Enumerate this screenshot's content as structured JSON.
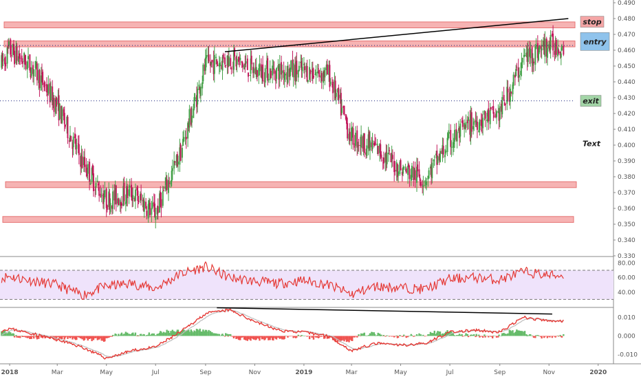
{
  "chart_data": [
    {
      "type": "candlestick",
      "panel": "price",
      "ylim": [
        0.33,
        0.49
      ],
      "ticks": [
        "0.490",
        "0.480",
        "0.470",
        "0.460",
        "0.450",
        "0.440",
        "0.430",
        "0.420",
        "0.410",
        "0.400",
        "0.390",
        "0.380",
        "0.370",
        "0.360",
        "0.350",
        "0.340",
        "0.330"
      ],
      "tick_values": [
        0.49,
        0.48,
        0.47,
        0.46,
        0.45,
        0.44,
        0.43,
        0.42,
        0.41,
        0.4,
        0.39,
        0.38,
        0.37,
        0.36,
        0.35,
        0.34,
        0.33
      ],
      "x_labels": [
        "2018",
        "Mar",
        "May",
        "Jul",
        "Sep",
        "Nov",
        "2019",
        "Mar",
        "May",
        "Jul",
        "Sep",
        "Nov",
        "2020"
      ],
      "x_label_dates": [
        "2018-01",
        "2018-03",
        "2018-05",
        "2018-07",
        "2018-09",
        "2018-11",
        "2019-01",
        "2019-03",
        "2019-05",
        "2019-07",
        "2019-09",
        "2019-11",
        "2020-01"
      ],
      "price_path": [
        [
          "2017-12",
          0.432
        ],
        [
          "2018-01",
          0.46
        ],
        [
          "2018-02",
          0.448
        ],
        [
          "2018-03",
          0.425
        ],
        [
          "2018-04",
          0.39
        ],
        [
          "2018-05",
          0.365
        ],
        [
          "2018-06",
          0.37
        ],
        [
          "2018-07",
          0.357
        ],
        [
          "2018-08",
          0.395
        ],
        [
          "2018-09",
          0.45
        ],
        [
          "2018-10",
          0.455
        ],
        [
          "2018-11",
          0.447
        ],
        [
          "2018-12",
          0.447
        ],
        [
          "2019-01",
          0.447
        ],
        [
          "2019-02",
          0.445
        ],
        [
          "2019-03",
          0.405
        ],
        [
          "2019-04",
          0.398
        ],
        [
          "2019-05",
          0.385
        ],
        [
          "2019-06",
          0.379
        ],
        [
          "2019-07",
          0.402
        ],
        [
          "2019-08",
          0.415
        ],
        [
          "2019-09",
          0.42
        ],
        [
          "2019-10",
          0.455
        ],
        [
          "2019-11",
          0.463
        ]
      ],
      "zones": [
        {
          "name": "stop-zone",
          "low": 0.475,
          "high": 0.477
        },
        {
          "name": "entry-zone",
          "low": 0.463,
          "high": 0.465
        },
        {
          "name": "support-zone-upper",
          "low": 0.374,
          "high": 0.376
        },
        {
          "name": "support-zone-lower",
          "low": 0.352,
          "high": 0.354
        }
      ],
      "levels": [
        {
          "name": "entry-level",
          "value": 0.463,
          "style": "dotted"
        },
        {
          "name": "exit-level",
          "value": 0.428,
          "style": "dotted"
        }
      ],
      "trendline": {
        "start": [
          "2018-09-25",
          0.459
        ],
        "end": [
          "2019-11-25",
          0.48
        ]
      },
      "labels": [
        {
          "text": "stop",
          "value": 0.478,
          "color": "#f4a6a6"
        },
        {
          "text": "entry",
          "value": 0.4655,
          "color": "#8fc3ec"
        },
        {
          "text": "exit",
          "value": 0.428,
          "color": "#a3d5a7"
        },
        {
          "text": "Text",
          "value": 0.401
        }
      ],
      "up_color": "#43a047",
      "down_color": "#c2185b"
    },
    {
      "type": "line",
      "panel": "rsi",
      "ylim": [
        20,
        88
      ],
      "ticks": [
        "80.00",
        "60.00",
        "40.00"
      ],
      "tick_values": [
        80,
        60,
        40
      ],
      "band": [
        30,
        70
      ],
      "color": "#e53935",
      "band_color": "#efe3fb",
      "path": [
        [
          "2017-12",
          55
        ],
        [
          "2018-01",
          62
        ],
        [
          "2018-02",
          55
        ],
        [
          "2018-03",
          50
        ],
        [
          "2018-04",
          36
        ],
        [
          "2018-05",
          48
        ],
        [
          "2018-06",
          52
        ],
        [
          "2018-07",
          45
        ],
        [
          "2018-08",
          65
        ],
        [
          "2018-09",
          75
        ],
        [
          "2018-10",
          60
        ],
        [
          "2018-11",
          55
        ],
        [
          "2018-12",
          52
        ],
        [
          "2019-01",
          56
        ],
        [
          "2019-02",
          50
        ],
        [
          "2019-03",
          37
        ],
        [
          "2019-04",
          48
        ],
        [
          "2019-05",
          46
        ],
        [
          "2019-06",
          44
        ],
        [
          "2019-07",
          58
        ],
        [
          "2019-08",
          60
        ],
        [
          "2019-09",
          57
        ],
        [
          "2019-10",
          68
        ],
        [
          "2019-11",
          63
        ]
      ]
    },
    {
      "type": "macd",
      "panel": "macd",
      "ylim": [
        -0.015,
        0.015
      ],
      "ticks": [
        "0.010",
        "0.000",
        "-0.010"
      ],
      "tick_values": [
        0.01,
        0.0,
        -0.01
      ],
      "macd_color": "#e53935",
      "signal_color": "#bdbdbd",
      "hist_up": "#66bb6a",
      "hist_down": "#ef5350",
      "macd_path": [
        [
          "2017-12",
          0.0
        ],
        [
          "2018-01",
          0.004
        ],
        [
          "2018-02",
          0.001
        ],
        [
          "2018-03",
          -0.002
        ],
        [
          "2018-04",
          -0.006
        ],
        [
          "2018-05",
          -0.012
        ],
        [
          "2018-06",
          -0.008
        ],
        [
          "2018-07",
          -0.006
        ],
        [
          "2018-08",
          0.002
        ],
        [
          "2018-09",
          0.012
        ],
        [
          "2018-10",
          0.014
        ],
        [
          "2018-11",
          0.008
        ],
        [
          "2018-12",
          0.003
        ],
        [
          "2019-01",
          0.002
        ],
        [
          "2019-02",
          0.0
        ],
        [
          "2019-03",
          -0.008
        ],
        [
          "2019-04",
          -0.004
        ],
        [
          "2019-05",
          -0.005
        ],
        [
          "2019-06",
          -0.004
        ],
        [
          "2019-07",
          0.002
        ],
        [
          "2019-08",
          0.003
        ],
        [
          "2019-09",
          0.002
        ],
        [
          "2019-10",
          0.01
        ],
        [
          "2019-11",
          0.008
        ]
      ],
      "trendline": {
        "start": [
          "2018-09-15",
          0.0152
        ],
        "end": [
          "2019-11-05",
          0.0118
        ]
      }
    }
  ]
}
